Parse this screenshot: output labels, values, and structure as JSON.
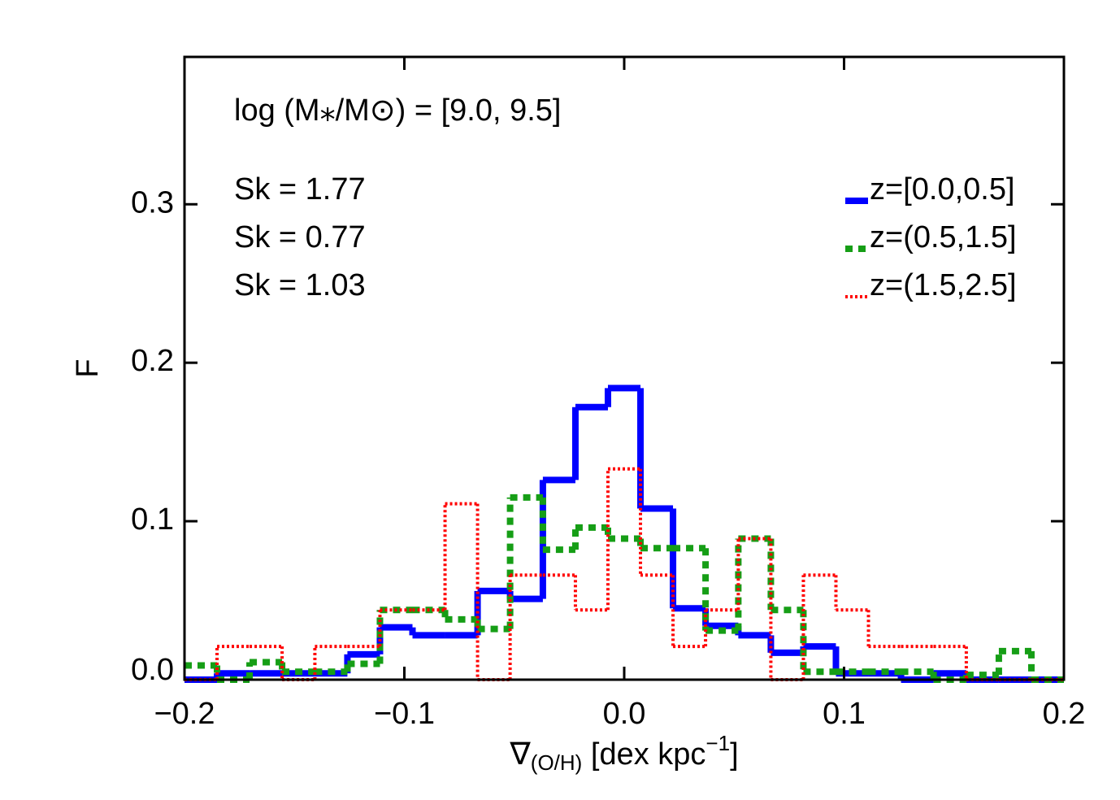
{
  "chart_data": {
    "type": "step-histogram",
    "ylabel": "F",
    "xlabel": {
      "symbol": "∇",
      "sub": "(O/H)",
      "unit": " [dex kpc",
      "sup": "−1",
      "close": "]"
    },
    "annotation": "log (M⁎/M⊙) = [9.0, 9.5]",
    "bins": [
      -0.2,
      -0.1852,
      -0.1704,
      -0.1556,
      -0.1407,
      -0.1259,
      -0.1111,
      -0.0963,
      -0.0815,
      -0.0667,
      -0.0519,
      -0.037,
      -0.0222,
      -0.0074,
      0.0074,
      0.0222,
      0.037,
      0.0519,
      0.0667,
      0.0815,
      0.0963,
      0.1111,
      0.1259,
      0.1407,
      0.1556,
      0.1704,
      0.1852,
      0.2
    ],
    "series": [
      {
        "name": "z=[0.0,0.5]",
        "color": "#0000ff",
        "style": "solid",
        "label": "Sk = 1.77",
        "values": [
          0,
          0.004,
          0.004,
          0.004,
          0.004,
          0.016,
          0.033,
          0.028,
          0.028,
          0.056,
          0.051,
          0.126,
          0.172,
          0.184,
          0.108,
          0.045,
          0.034,
          0.028,
          0.017,
          0.021,
          0.004,
          0.004,
          0,
          0.004,
          0,
          0,
          0
        ]
      },
      {
        "name": "z=(0.5,1.5]",
        "color": "#169e16",
        "style": "dashed",
        "label": "Sk = 0.77",
        "values": [
          0.009,
          0,
          0.011,
          0.005,
          0.005,
          0.01,
          0.044,
          0.044,
          0.038,
          0.032,
          0.115,
          0.082,
          0.096,
          0.089,
          0.083,
          0.083,
          0.031,
          0.089,
          0.044,
          0.005,
          0.005,
          0.005,
          0.005,
          0,
          0.003,
          0.018,
          0
        ]
      },
      {
        "name": "z=(1.5,2.5]",
        "color": "#ff0000",
        "style": "dotted",
        "label": "Sk = 1.03",
        "values": [
          0,
          0.021,
          0.021,
          0,
          0.021,
          0.021,
          0.044,
          0.044,
          0.111,
          0,
          0.066,
          0.066,
          0.044,
          0.133,
          0.066,
          0.021,
          0.044,
          0.089,
          0,
          0.066,
          0.044,
          0.021,
          0.021,
          0.021,
          0,
          0,
          0
        ]
      }
    ],
    "xlim": [
      -0.2,
      0.2
    ],
    "ylim": [
      0,
      0.393
    ],
    "xticks": [
      {
        "value": -0.2,
        "label": "−0.2"
      },
      {
        "value": -0.1,
        "label": "−0.1"
      },
      {
        "value": 0,
        "label": "0.0"
      },
      0.1,
      0.2
    ],
    "yticks": [
      {
        "value": 0,
        "label": "0.0"
      },
      0.1,
      0.2,
      0.3
    ],
    "legend": "upper right"
  }
}
